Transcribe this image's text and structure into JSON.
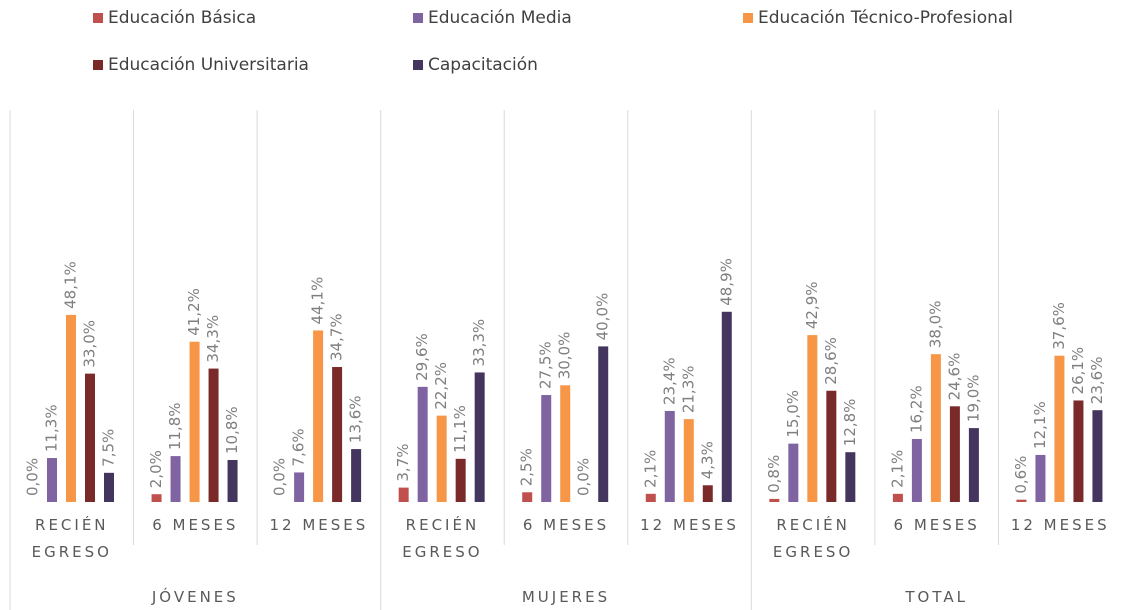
{
  "chart_data": {
    "type": "bar",
    "categories": [
      "RECIÉN EGRESO",
      "6 MESES",
      "12 MESES",
      "RECIÉN EGRESO",
      "6 MESES",
      "12 MESES",
      "RECIÉN EGRESO",
      "6 MESES",
      "12 MESES"
    ],
    "groups": [
      "JÓVENES",
      "MUJERES",
      "TOTAL"
    ],
    "series": [
      {
        "name": "Educación Básica",
        "color": "#c0504d",
        "values": [
          0.0,
          2.0,
          0.0,
          3.7,
          2.5,
          2.1,
          0.8,
          2.1,
          0.6
        ],
        "value_labels": [
          "0,0%",
          "2,0%",
          "0,0%",
          "3,7%",
          "2,5%",
          "2,1%",
          "0,8%",
          "2,1%",
          "0,6%"
        ]
      },
      {
        "name": "Educación Media",
        "color": "#8064a2",
        "values": [
          11.3,
          11.8,
          7.6,
          29.6,
          27.5,
          23.4,
          15.0,
          16.2,
          12.1
        ],
        "value_labels": [
          "11,3%",
          "11,8%",
          "7,6%",
          "29,6%",
          "27,5%",
          "23,4%",
          "15,0%",
          "16,2%",
          "12,1%"
        ]
      },
      {
        "name": "Educación Técnico-Profesional",
        "color": "#f79646",
        "values": [
          48.1,
          41.2,
          44.1,
          22.2,
          30.0,
          21.3,
          42.9,
          38.0,
          37.6
        ],
        "value_labels": [
          "48,1%",
          "41,2%",
          "44,1%",
          "22,2%",
          "30,0%",
          "21,3%",
          "42,9%",
          "38,0%",
          "37,6%"
        ]
      },
      {
        "name": "Educación Universitaria",
        "color": "#7b2a2a",
        "values": [
          33.0,
          34.3,
          34.7,
          11.1,
          0.0,
          4.3,
          28.6,
          24.6,
          26.1
        ],
        "value_labels": [
          "33,0%",
          "34,3%",
          "34,7%",
          "11,1%",
          "0,0%",
          "4,3%",
          "28,6%",
          "24,6%",
          "26,1%"
        ]
      },
      {
        "name": "Capacitación",
        "color": "#44355e",
        "values": [
          7.5,
          10.8,
          13.6,
          33.3,
          40.0,
          48.9,
          12.8,
          19.0,
          23.6
        ],
        "value_labels": [
          "7,5%",
          "10,8%",
          "13,6%",
          "33,3%",
          "40,0%",
          "48,9%",
          "12,8%",
          "19,0%",
          "23,6%"
        ]
      }
    ]
  }
}
